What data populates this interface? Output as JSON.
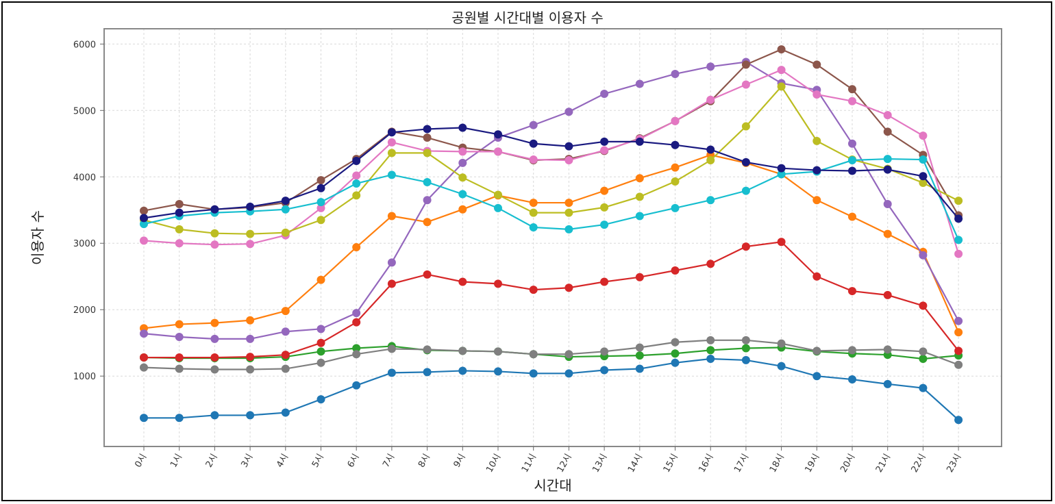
{
  "chart_data": {
    "type": "line",
    "title": "공원별 시간대별 이용자 수",
    "xlabel": "시간대",
    "ylabel": "이용자 수",
    "categories": [
      "0시",
      "1시",
      "2시",
      "3시",
      "4시",
      "5시",
      "6시",
      "7시",
      "8시",
      "9시",
      "10시",
      "11시",
      "12시",
      "13시",
      "14시",
      "15시",
      "16시",
      "17시",
      "18시",
      "19시",
      "20시",
      "21시",
      "22시",
      "23시"
    ],
    "yticks": [
      "1000",
      "2000",
      "3000",
      "4000",
      "5000",
      "6000"
    ],
    "ylim": [
      -60,
      6230
    ],
    "grid": true,
    "series": [
      {
        "color": "#1f77b4",
        "values": [
          370,
          370,
          410,
          410,
          450,
          650,
          860,
          1050,
          1060,
          1080,
          1070,
          1040,
          1040,
          1090,
          1110,
          1200,
          1260,
          1240,
          1150,
          1000,
          950,
          880,
          820,
          340
        ]
      },
      {
        "color": "#ff7f0e",
        "values": [
          1720,
          1780,
          1800,
          1840,
          1980,
          2450,
          2940,
          3410,
          3320,
          3510,
          3720,
          3610,
          3610,
          3790,
          3980,
          4140,
          4330,
          4210,
          4040,
          3650,
          3400,
          3140,
          2870,
          1660
        ]
      },
      {
        "color": "#2ca02c",
        "values": [
          1280,
          1270,
          1270,
          1270,
          1290,
          1370,
          1420,
          1450,
          1390,
          1380,
          1370,
          1330,
          1290,
          1300,
          1310,
          1340,
          1390,
          1420,
          1430,
          1370,
          1340,
          1320,
          1260,
          1310
        ]
      },
      {
        "color": "#d62728",
        "values": [
          1280,
          1280,
          1280,
          1290,
          1320,
          1500,
          1810,
          2390,
          2530,
          2420,
          2390,
          2300,
          2330,
          2420,
          2490,
          2590,
          2690,
          2950,
          3020,
          2500,
          2280,
          2220,
          2060,
          1380
        ]
      },
      {
        "color": "#9467bd",
        "values": [
          1640,
          1590,
          1560,
          1560,
          1670,
          1710,
          1950,
          2710,
          3650,
          4210,
          4590,
          4780,
          4980,
          5250,
          5400,
          5550,
          5660,
          5730,
          5410,
          5310,
          4500,
          3590,
          2820,
          1830
        ]
      },
      {
        "color": "#8c564b",
        "values": [
          3490,
          3590,
          3510,
          3540,
          3610,
          3950,
          4270,
          4680,
          4590,
          4440,
          4380,
          4250,
          4270,
          4390,
          4580,
          4840,
          5140,
          5690,
          5920,
          5690,
          5320,
          4680,
          4330,
          3420
        ]
      },
      {
        "color": "#e377c2",
        "values": [
          3040,
          3000,
          2980,
          2990,
          3120,
          3530,
          4020,
          4520,
          4390,
          4380,
          4380,
          4260,
          4250,
          4400,
          4570,
          4840,
          5160,
          5390,
          5610,
          5240,
          5140,
          4930,
          4620,
          2840
        ]
      },
      {
        "color": "#7f7f7f",
        "values": [
          1130,
          1110,
          1100,
          1100,
          1110,
          1200,
          1330,
          1410,
          1400,
          1380,
          1370,
          1330,
          1330,
          1370,
          1430,
          1510,
          1540,
          1540,
          1490,
          1380,
          1390,
          1400,
          1370,
          1170
        ]
      },
      {
        "color": "#bcbd22",
        "values": [
          3350,
          3210,
          3150,
          3140,
          3160,
          3350,
          3720,
          4360,
          4360,
          3990,
          3730,
          3460,
          3460,
          3540,
          3700,
          3930,
          4250,
          4760,
          5360,
          4540,
          4260,
          4120,
          3910,
          3640
        ]
      },
      {
        "color": "#17becf",
        "values": [
          3290,
          3410,
          3460,
          3480,
          3510,
          3620,
          3900,
          4030,
          3920,
          3740,
          3530,
          3240,
          3210,
          3280,
          3410,
          3530,
          3650,
          3790,
          4040,
          4080,
          4250,
          4270,
          4260,
          3050
        ]
      },
      {
        "color": "#1a1a80",
        "values": [
          3380,
          3460,
          3510,
          3550,
          3640,
          3830,
          4240,
          4670,
          4720,
          4740,
          4640,
          4500,
          4460,
          4530,
          4530,
          4480,
          4410,
          4220,
          4130,
          4100,
          4090,
          4110,
          4010,
          3370
        ]
      }
    ]
  }
}
